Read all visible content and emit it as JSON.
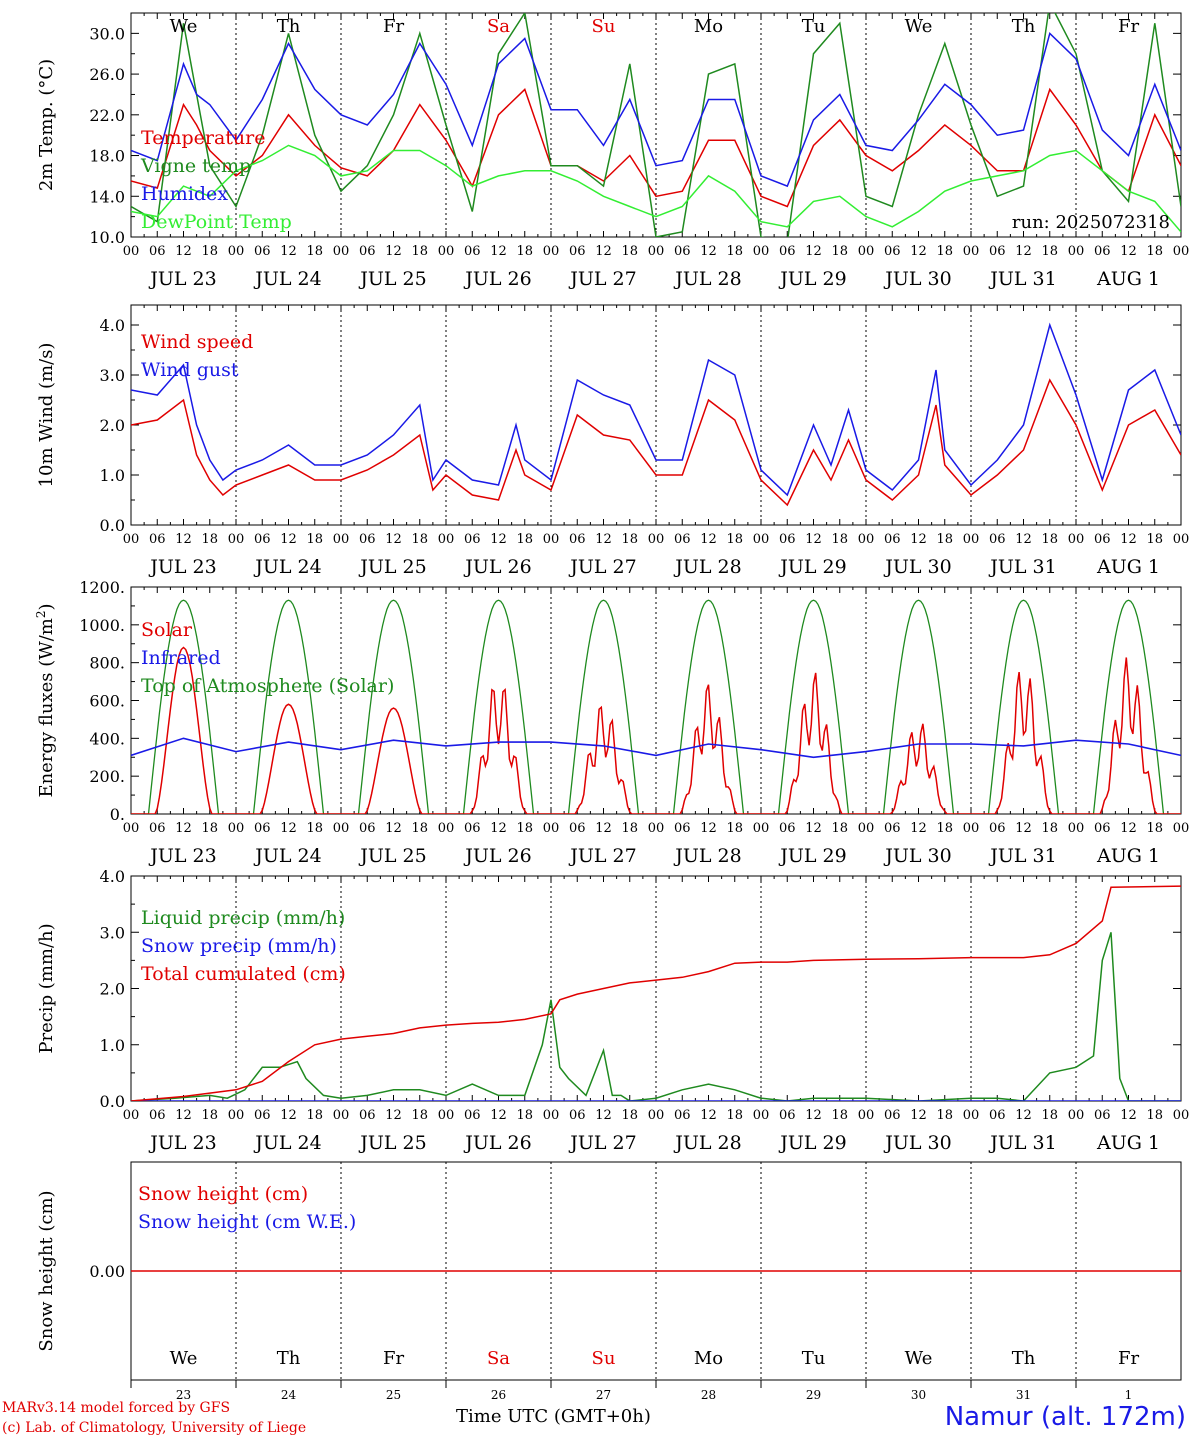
{
  "day_labels": [
    "We",
    "Th",
    "Fr",
    "Sa",
    "Su",
    "Mo",
    "Tu",
    "We",
    "Th",
    "Fr"
  ],
  "weekend_color": "#e00000",
  "weekend_indices": [
    3,
    4
  ],
  "date_labels": [
    "JUL 23",
    "JUL 24",
    "JUL 25",
    "JUL 26",
    "JUL 27",
    "JUL 28",
    "JUL 29",
    "JUL 30",
    "JUL 31",
    "AUG  1"
  ],
  "day_numbers": [
    "23",
    "24",
    "25",
    "26",
    "27",
    "28",
    "29",
    "30",
    "31",
    "1"
  ],
  "hour_labels": [
    "00",
    "06",
    "12",
    "18"
  ],
  "footer": {
    "model_line": "MARv3.14 model forced by GFS",
    "lab_line": "(c) Lab. of Climatology, University of Liege",
    "time_axis": "Time UTC (GMT+0h)",
    "location": "Namur (alt. 172m)"
  },
  "chart_data": [
    {
      "type": "line",
      "ylabel": "2m Temp. (°C)",
      "ylim": [
        10,
        32
      ],
      "yticks": [
        "10.0",
        "14.0",
        "18.0",
        "22.0",
        "26.0",
        "30.0"
      ],
      "ytick_values": [
        10,
        14,
        18,
        22,
        26,
        30
      ],
      "annotation": "run: 2025072318",
      "x_unit": "hours since JUL 23 00 UTC",
      "series": [
        {
          "name": "Temperature",
          "color": "#e00000",
          "x": [
            0,
            6,
            12,
            15,
            18,
            24,
            30,
            36,
            42,
            48,
            54,
            60,
            66,
            72,
            78,
            84,
            90,
            96,
            102,
            108,
            114,
            120,
            126,
            132,
            138,
            144,
            150,
            156,
            162,
            168,
            174,
            180,
            186,
            192,
            198,
            204,
            210,
            216,
            222,
            228,
            234,
            240
          ],
          "y": [
            15.5,
            14.8,
            23.0,
            21.0,
            18.5,
            16.0,
            18.0,
            22.0,
            19.0,
            16.8,
            16.0,
            18.5,
            23.0,
            19.5,
            15.0,
            22.0,
            24.5,
            17.0,
            17.0,
            15.5,
            18.0,
            14.0,
            14.5,
            19.5,
            19.5,
            14.0,
            13.0,
            19.0,
            21.5,
            18.0,
            16.5,
            18.5,
            21.0,
            19.0,
            16.5,
            16.5,
            24.5,
            21.0,
            16.5,
            14.5,
            22.0,
            17.0
          ]
        },
        {
          "name": "Vigne temp",
          "color": "#1f8a1f",
          "x": [
            0,
            6,
            12,
            15,
            18,
            24,
            30,
            36,
            42,
            48,
            54,
            60,
            66,
            72,
            78,
            84,
            90,
            96,
            102,
            108,
            114,
            120,
            126,
            132,
            138,
            144,
            150,
            156,
            162,
            168,
            174,
            180,
            186,
            192,
            198,
            204,
            210,
            216,
            222,
            228,
            234,
            240
          ],
          "y": [
            13.0,
            11.5,
            31.0,
            24.0,
            17.0,
            13.0,
            20.0,
            30.0,
            20.0,
            14.5,
            17.0,
            22.0,
            30.0,
            21.0,
            12.5,
            28.0,
            32.0,
            17.0,
            17.0,
            15.0,
            27.0,
            10.0,
            10.5,
            26.0,
            27.0,
            10.0,
            9.5,
            28.0,
            31.0,
            14.0,
            13.0,
            22.0,
            29.0,
            21.0,
            14.0,
            15.0,
            33.0,
            28.0,
            16.5,
            13.5,
            31.0,
            13.0
          ]
        },
        {
          "name": "Humidex",
          "color": "#1a1ae6",
          "x": [
            0,
            6,
            12,
            15,
            18,
            24,
            30,
            36,
            42,
            48,
            54,
            60,
            66,
            72,
            78,
            84,
            90,
            96,
            102,
            108,
            114,
            120,
            126,
            132,
            138,
            144,
            150,
            156,
            162,
            168,
            174,
            180,
            186,
            192,
            198,
            204,
            210,
            216,
            222,
            228,
            234,
            240
          ],
          "y": [
            18.5,
            17.5,
            27.0,
            24.0,
            23.0,
            19.5,
            23.5,
            29.0,
            24.5,
            22.0,
            21.0,
            24.0,
            29.0,
            25.0,
            19.0,
            27.0,
            29.5,
            22.5,
            22.5,
            19.0,
            23.5,
            17.0,
            17.5,
            23.5,
            23.5,
            16.0,
            15.0,
            21.5,
            24.0,
            19.0,
            18.5,
            21.5,
            25.0,
            23.0,
            20.0,
            20.5,
            30.0,
            27.5,
            20.5,
            18.0,
            25.0,
            18.5
          ]
        },
        {
          "name": "DewPoint Temp",
          "color": "#33ee33",
          "x": [
            0,
            6,
            12,
            15,
            18,
            24,
            30,
            36,
            42,
            48,
            54,
            60,
            66,
            72,
            78,
            84,
            90,
            96,
            102,
            108,
            114,
            120,
            126,
            132,
            138,
            144,
            150,
            156,
            162,
            168,
            174,
            180,
            186,
            192,
            198,
            204,
            210,
            216,
            222,
            228,
            234,
            240
          ],
          "y": [
            12.5,
            12.0,
            15.0,
            14.5,
            14.0,
            16.5,
            17.5,
            19.0,
            18.0,
            16.0,
            16.5,
            18.5,
            18.5,
            17.0,
            15.0,
            16.0,
            16.5,
            16.5,
            15.5,
            14.0,
            13.0,
            12.0,
            13.0,
            16.0,
            14.5,
            11.5,
            11.0,
            13.5,
            14.0,
            12.0,
            11.0,
            12.5,
            14.5,
            15.5,
            16.0,
            16.5,
            18.0,
            18.5,
            16.5,
            14.5,
            13.5,
            10.5
          ]
        }
      ]
    },
    {
      "type": "line",
      "ylabel": "10m Wind (m/s)",
      "ylim": [
        0,
        4.4
      ],
      "yticks": [
        "0.0",
        "1.0",
        "2.0",
        "3.0",
        "4.0"
      ],
      "ytick_values": [
        0,
        1,
        2,
        3,
        4
      ],
      "x_unit": "hours since JUL 23 00 UTC",
      "series": [
        {
          "name": "Wind speed",
          "color": "#e00000",
          "x": [
            0,
            6,
            12,
            15,
            18,
            21,
            24,
            30,
            36,
            42,
            48,
            54,
            60,
            66,
            69,
            72,
            78,
            84,
            88,
            90,
            96,
            102,
            108,
            114,
            120,
            126,
            132,
            138,
            144,
            150,
            156,
            160,
            164,
            168,
            174,
            180,
            184,
            186,
            192,
            198,
            204,
            210,
            216,
            222,
            228,
            234,
            240
          ],
          "y": [
            2.0,
            2.1,
            2.5,
            1.4,
            0.9,
            0.6,
            0.8,
            1.0,
            1.2,
            0.9,
            0.9,
            1.1,
            1.4,
            1.8,
            0.7,
            1.0,
            0.6,
            0.5,
            1.5,
            1.0,
            0.7,
            2.2,
            1.8,
            1.7,
            1.0,
            1.0,
            2.5,
            2.1,
            0.9,
            0.4,
            1.5,
            0.9,
            1.7,
            0.9,
            0.5,
            1.0,
            2.4,
            1.2,
            0.6,
            1.0,
            1.5,
            2.9,
            2.0,
            0.7,
            2.0,
            2.3,
            1.4
          ]
        },
        {
          "name": "Wind gust",
          "color": "#1a1ae6",
          "x": [
            0,
            6,
            12,
            15,
            18,
            21,
            24,
            30,
            36,
            42,
            48,
            54,
            60,
            66,
            69,
            72,
            78,
            84,
            88,
            90,
            96,
            102,
            108,
            114,
            120,
            126,
            132,
            138,
            144,
            150,
            156,
            160,
            164,
            168,
            174,
            180,
            184,
            186,
            192,
            198,
            204,
            210,
            216,
            222,
            228,
            234,
            240
          ],
          "y": [
            2.7,
            2.6,
            3.2,
            2.0,
            1.3,
            0.9,
            1.1,
            1.3,
            1.6,
            1.2,
            1.2,
            1.4,
            1.8,
            2.4,
            0.9,
            1.3,
            0.9,
            0.8,
            2.0,
            1.3,
            0.9,
            2.9,
            2.6,
            2.4,
            1.3,
            1.3,
            3.3,
            3.0,
            1.1,
            0.6,
            2.0,
            1.2,
            2.3,
            1.1,
            0.7,
            1.3,
            3.1,
            1.5,
            0.8,
            1.3,
            2.0,
            4.0,
            2.6,
            0.9,
            2.7,
            3.1,
            1.8
          ]
        }
      ]
    },
    {
      "type": "line",
      "ylabel": "Energy fluxes (W/m2)",
      "ylim": [
        0,
        1200
      ],
      "yticks": [
        "0.",
        "200.",
        "400.",
        "600.",
        "800.",
        "1000.",
        "1200."
      ],
      "ytick_values": [
        0,
        200,
        400,
        600,
        800,
        1000,
        1200
      ],
      "x_unit": "hours since JUL 23 00 UTC",
      "toa_peak": 1130,
      "sunrise_hour": 4.0,
      "sunset_hour": 20.0,
      "solar_peaks": [
        880,
        580,
        560,
        740,
        600,
        700,
        760,
        500,
        800,
        840
      ],
      "series": [
        {
          "name": "Solar",
          "color": "#e00000"
        },
        {
          "name": "Infrared",
          "color": "#1a1ae6",
          "x": [
            0,
            12,
            24,
            36,
            48,
            60,
            72,
            84,
            96,
            108,
            120,
            132,
            144,
            156,
            168,
            180,
            192,
            204,
            216,
            228,
            240
          ],
          "y": [
            310,
            400,
            330,
            380,
            340,
            390,
            360,
            380,
            380,
            360,
            310,
            370,
            340,
            300,
            330,
            370,
            370,
            360,
            390,
            370,
            310
          ]
        },
        {
          "name": "Top of Atmosphere (Solar)",
          "color": "#1f8a1f"
        }
      ]
    },
    {
      "type": "line",
      "ylabel": "Precip (mm/h)",
      "ylim": [
        0,
        4
      ],
      "yticks": [
        "0.0",
        "1.0",
        "2.0",
        "3.0",
        "4.0"
      ],
      "ytick_values": [
        0,
        1,
        2,
        3,
        4
      ],
      "x_unit": "hours since JUL 23 00 UTC",
      "series": [
        {
          "name": "Liquid precip (mm/h)",
          "color": "#1f8a1f",
          "x": [
            0,
            10,
            18,
            22,
            26,
            30,
            34,
            38,
            40,
            44,
            48,
            54,
            60,
            66,
            72,
            78,
            84,
            90,
            94,
            96,
            98,
            100,
            104,
            108,
            110,
            112,
            114,
            120,
            126,
            132,
            138,
            144,
            150,
            156,
            168,
            180,
            192,
            198,
            204,
            210,
            216,
            220,
            222,
            224,
            226,
            228,
            240
          ],
          "y": [
            0,
            0.05,
            0.1,
            0.05,
            0.2,
            0.6,
            0.6,
            0.7,
            0.4,
            0.1,
            0.05,
            0.1,
            0.2,
            0.2,
            0.1,
            0.3,
            0.1,
            0.1,
            1.0,
            1.8,
            0.6,
            0.4,
            0.1,
            0.9,
            0.1,
            0.1,
            0,
            0.05,
            0.2,
            0.3,
            0.2,
            0.05,
            0,
            0.05,
            0.05,
            0,
            0.05,
            0.05,
            0,
            0.5,
            0.6,
            0.8,
            2.5,
            3.0,
            0.4,
            0,
            0
          ]
        },
        {
          "name": "Snow precip (mm/h)",
          "color": "#1a1ae6",
          "x": [
            0,
            240
          ],
          "y": [
            0,
            0
          ]
        },
        {
          "name": "Total cumulated (cm)",
          "color": "#e00000",
          "x": [
            0,
            12,
            24,
            30,
            36,
            42,
            48,
            54,
            60,
            66,
            72,
            78,
            84,
            90,
            96,
            98,
            102,
            108,
            114,
            120,
            126,
            132,
            138,
            144,
            150,
            156,
            168,
            180,
            192,
            204,
            210,
            216,
            222,
            224,
            240
          ],
          "y": [
            0,
            0.08,
            0.2,
            0.35,
            0.7,
            1.0,
            1.1,
            1.15,
            1.2,
            1.3,
            1.35,
            1.38,
            1.4,
            1.45,
            1.55,
            1.8,
            1.9,
            2.0,
            2.1,
            2.15,
            2.2,
            2.3,
            2.45,
            2.47,
            2.47,
            2.5,
            2.52,
            2.53,
            2.55,
            2.55,
            2.6,
            2.8,
            3.2,
            3.8,
            3.82
          ]
        }
      ]
    },
    {
      "type": "line",
      "ylabel": "Snow height (cm)",
      "ylim": [
        -1,
        1
      ],
      "yticks": [
        "0.00"
      ],
      "ytick_values": [
        0
      ],
      "x_unit": "hours since JUL 23 00 UTC",
      "series": [
        {
          "name": "Snow height (cm)",
          "color": "#e00000",
          "x": [
            0,
            240
          ],
          "y": [
            0,
            0
          ]
        },
        {
          "name": "Snow height (cm W.E.)",
          "color": "#1a1ae6",
          "x": [],
          "y": []
        }
      ]
    }
  ]
}
